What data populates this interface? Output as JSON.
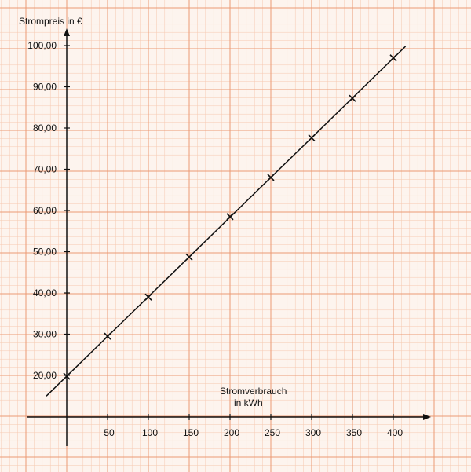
{
  "chart_data": {
    "type": "line",
    "title": "",
    "ylabel": "Strompreis in €",
    "xlabel_line1": "Stromverbrauch",
    "xlabel_line2": "in kWh",
    "x_ticks": [
      "50",
      "100",
      "150",
      "200",
      "250",
      "300",
      "350",
      "400"
    ],
    "y_ticks": [
      "20,00",
      "30,00",
      "40,00",
      "50,00",
      "60,00",
      "70,00",
      "80,00",
      "90,00",
      "100,00"
    ],
    "xlim": [
      0,
      400
    ],
    "ylim": [
      20,
      100
    ],
    "grid": true,
    "series": [
      {
        "x": [
          0,
          50,
          100,
          150,
          200,
          250,
          300,
          350,
          400
        ],
        "y": [
          19.8,
          29.5,
          39.0,
          48.7,
          58.5,
          68.0,
          77.6,
          87.2,
          97.0
        ],
        "marker": "x",
        "line": "linear-fit"
      }
    ],
    "colors": {
      "grid_fine": "#f6c9b0",
      "grid_coarse": "#ec9a74",
      "paper": "#fdf4ee",
      "ink": "#111111"
    }
  }
}
